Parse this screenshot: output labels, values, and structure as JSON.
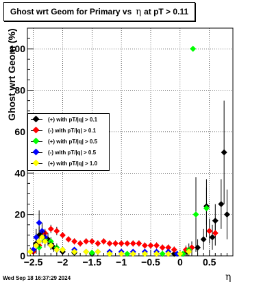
{
  "title": {
    "text_left": "Ghost wrt Geom for Primary vs",
    "eta_symbol": "η",
    "text_right": "at pT > 0.11"
  },
  "timestamp": "Wed Sep 18 16:37:29 2024",
  "chart_data": {
    "type": "scatter",
    "ylabel": "Ghost wrt Geom (%)",
    "xlabel": "η",
    "xlim": [
      -2.6,
      0.9
    ],
    "ylim": [
      0,
      110
    ],
    "x_ticks": [
      -2.5,
      -2,
      -1.5,
      -1,
      -0.5,
      0,
      0.5
    ],
    "x_tick_labels": [
      "−2.5",
      "−2",
      "−1.5",
      "−1",
      "−0.5",
      "0",
      "0.5"
    ],
    "y_ticks": [
      0,
      20,
      40,
      60,
      80,
      100
    ],
    "y_tick_labels": [
      "0",
      "20",
      "40",
      "60",
      "80",
      "100"
    ],
    "grid": true,
    "legend_position": "left-middle",
    "series": [
      {
        "name": "(+) with pT/|q| > 0.1",
        "color": "#000000",
        "points": [
          {
            "x": -2.45,
            "y": 6,
            "e": 5
          },
          {
            "x": -2.4,
            "y": 10,
            "e": 4
          },
          {
            "x": -2.35,
            "y": 11,
            "e": 4
          },
          {
            "x": -2.3,
            "y": 9,
            "e": 3
          },
          {
            "x": -2.25,
            "y": 8,
            "e": 3
          },
          {
            "x": -2.2,
            "y": 6,
            "e": 2
          },
          {
            "x": -2.15,
            "y": 4,
            "e": 2
          },
          {
            "x": -2.1,
            "y": 3,
            "e": 1.5
          },
          {
            "x": -2.0,
            "y": 2,
            "e": 1
          },
          {
            "x": -1.8,
            "y": 1.5,
            "e": 1
          },
          {
            "x": -1.5,
            "y": 1,
            "e": 1
          },
          {
            "x": -1.2,
            "y": 1,
            "e": 1
          },
          {
            "x": -0.8,
            "y": 1,
            "e": 1
          },
          {
            "x": -0.4,
            "y": 1,
            "e": 1
          },
          {
            "x": -0.1,
            "y": 1,
            "e": 1
          },
          {
            "x": 0.05,
            "y": 1,
            "e": 1
          },
          {
            "x": 0.12,
            "y": 2,
            "e": 2
          },
          {
            "x": 0.2,
            "y": 4,
            "e": 3
          },
          {
            "x": 0.3,
            "y": 4,
            "e": 4
          },
          {
            "x": 0.4,
            "y": 8,
            "e": 5
          },
          {
            "x": 0.45,
            "y": 24,
            "e": 9
          },
          {
            "x": 0.55,
            "y": 9,
            "e": 6
          },
          {
            "x": 0.6,
            "y": 17,
            "e": 8
          },
          {
            "x": 0.7,
            "y": 25,
            "e": 12
          },
          {
            "x": 0.75,
            "y": 50,
            "e": 25
          },
          {
            "x": 0.8,
            "y": 20,
            "e": 12
          }
        ]
      },
      {
        "name": "(-) with pT/|q| > 0.1",
        "color": "#ff0000",
        "points": [
          {
            "x": -2.5,
            "y": 2,
            "e": 2
          },
          {
            "x": -2.4,
            "y": 5,
            "e": 2
          },
          {
            "x": -2.3,
            "y": 11,
            "e": 2
          },
          {
            "x": -2.2,
            "y": 13,
            "e": 2
          },
          {
            "x": -2.1,
            "y": 12,
            "e": 2
          },
          {
            "x": -2.0,
            "y": 10,
            "e": 1.5
          },
          {
            "x": -1.9,
            "y": 8,
            "e": 1.5
          },
          {
            "x": -1.8,
            "y": 7,
            "e": 1.5
          },
          {
            "x": -1.7,
            "y": 6,
            "e": 1.5
          },
          {
            "x": -1.6,
            "y": 7,
            "e": 1.5
          },
          {
            "x": -1.5,
            "y": 7,
            "e": 1.5
          },
          {
            "x": -1.4,
            "y": 6,
            "e": 1.5
          },
          {
            "x": -1.3,
            "y": 7,
            "e": 1.5
          },
          {
            "x": -1.2,
            "y": 6,
            "e": 1.5
          },
          {
            "x": -1.1,
            "y": 6,
            "e": 1.5
          },
          {
            "x": -1.0,
            "y": 6,
            "e": 1.5
          },
          {
            "x": -0.9,
            "y": 6,
            "e": 1.5
          },
          {
            "x": -0.8,
            "y": 6,
            "e": 1.5
          },
          {
            "x": -0.7,
            "y": 6,
            "e": 1.5
          },
          {
            "x": -0.6,
            "y": 5,
            "e": 1.5
          },
          {
            "x": -0.5,
            "y": 5,
            "e": 1.5
          },
          {
            "x": -0.4,
            "y": 5,
            "e": 1.5
          },
          {
            "x": -0.3,
            "y": 4,
            "e": 1.5
          },
          {
            "x": -0.2,
            "y": 4,
            "e": 1.5
          },
          {
            "x": -0.1,
            "y": 3,
            "e": 1.5
          },
          {
            "x": 0.1,
            "y": 3,
            "e": 2
          },
          {
            "x": 0.2,
            "y": 4,
            "e": 2
          },
          {
            "x": 0.5,
            "y": 12,
            "e": 6
          },
          {
            "x": 0.6,
            "y": 11,
            "e": 6
          }
        ]
      },
      {
        "name": "(+) with pT/|q| > 0.5",
        "color": "#00ff00",
        "points": [
          {
            "x": -2.4,
            "y": 4,
            "e": 3
          },
          {
            "x": -2.3,
            "y": 8,
            "e": 3
          },
          {
            "x": -2.2,
            "y": 7,
            "e": 2
          },
          {
            "x": -2.1,
            "y": 4,
            "e": 2
          },
          {
            "x": -2.0,
            "y": 3,
            "e": 1.5
          },
          {
            "x": -1.8,
            "y": 2,
            "e": 1
          },
          {
            "x": -1.5,
            "y": 1.5,
            "e": 1
          },
          {
            "x": -1.2,
            "y": 1,
            "e": 1
          },
          {
            "x": -0.9,
            "y": 1,
            "e": 1
          },
          {
            "x": -0.6,
            "y": 1,
            "e": 1
          },
          {
            "x": -0.3,
            "y": 1,
            "e": 1
          },
          {
            "x": 0.05,
            "y": 1,
            "e": 1
          },
          {
            "x": 0.15,
            "y": 3,
            "e": 3
          },
          {
            "x": 0.22,
            "y": 100,
            "e": 0
          },
          {
            "x": 0.27,
            "y": 20,
            "e": 18
          },
          {
            "x": 0.45,
            "y": 23,
            "e": 14
          }
        ]
      },
      {
        "name": "(-) with pT/|q| > 0.5",
        "color": "#0000ff",
        "points": [
          {
            "x": -2.5,
            "y": 3,
            "e": 3
          },
          {
            "x": -2.45,
            "y": 9,
            "e": 4
          },
          {
            "x": -2.4,
            "y": 16,
            "e": 6
          },
          {
            "x": -2.35,
            "y": 12,
            "e": 4
          },
          {
            "x": -2.3,
            "y": 9,
            "e": 3
          },
          {
            "x": -2.2,
            "y": 5,
            "e": 2
          },
          {
            "x": -2.1,
            "y": 3,
            "e": 1.5
          },
          {
            "x": -2.0,
            "y": 3,
            "e": 1.5
          },
          {
            "x": -1.8,
            "y": 3,
            "e": 1
          },
          {
            "x": -1.6,
            "y": 2,
            "e": 1
          },
          {
            "x": -1.4,
            "y": 2,
            "e": 1
          },
          {
            "x": -1.2,
            "y": 2,
            "e": 1
          },
          {
            "x": -1.0,
            "y": 2,
            "e": 1
          },
          {
            "x": -0.8,
            "y": 2,
            "e": 1
          },
          {
            "x": -0.6,
            "y": 2,
            "e": 1
          },
          {
            "x": -0.4,
            "y": 2,
            "e": 1
          },
          {
            "x": -0.2,
            "y": 2,
            "e": 1
          },
          {
            "x": -0.05,
            "y": 1,
            "e": 1
          }
        ]
      },
      {
        "name": "(+) with pT/|q| > 1.0",
        "color": "#ffff00",
        "points": [
          {
            "x": -2.55,
            "y": 2,
            "e": 2
          },
          {
            "x": -2.45,
            "y": 5,
            "e": 3
          },
          {
            "x": -2.4,
            "y": 7,
            "e": 3
          },
          {
            "x": -2.35,
            "y": 9,
            "e": 3
          },
          {
            "x": -2.3,
            "y": 7,
            "e": 3
          },
          {
            "x": -2.2,
            "y": 5,
            "e": 2
          },
          {
            "x": -2.1,
            "y": 3,
            "e": 2
          },
          {
            "x": -2.0,
            "y": 3,
            "e": 1.5
          },
          {
            "x": -1.8,
            "y": 2,
            "e": 1
          },
          {
            "x": -1.6,
            "y": 2,
            "e": 1
          },
          {
            "x": -1.4,
            "y": 2,
            "e": 1
          },
          {
            "x": -1.2,
            "y": 1,
            "e": 1
          },
          {
            "x": -1.0,
            "y": 1,
            "e": 1
          },
          {
            "x": -0.8,
            "y": 1,
            "e": 1
          },
          {
            "x": -0.6,
            "y": 1,
            "e": 1
          },
          {
            "x": -0.4,
            "y": 1,
            "e": 1
          },
          {
            "x": -0.2,
            "y": 1,
            "e": 1
          },
          {
            "x": 0.0,
            "y": 1,
            "e": 1
          },
          {
            "x": 0.15,
            "y": 2,
            "e": 2
          }
        ]
      }
    ]
  }
}
